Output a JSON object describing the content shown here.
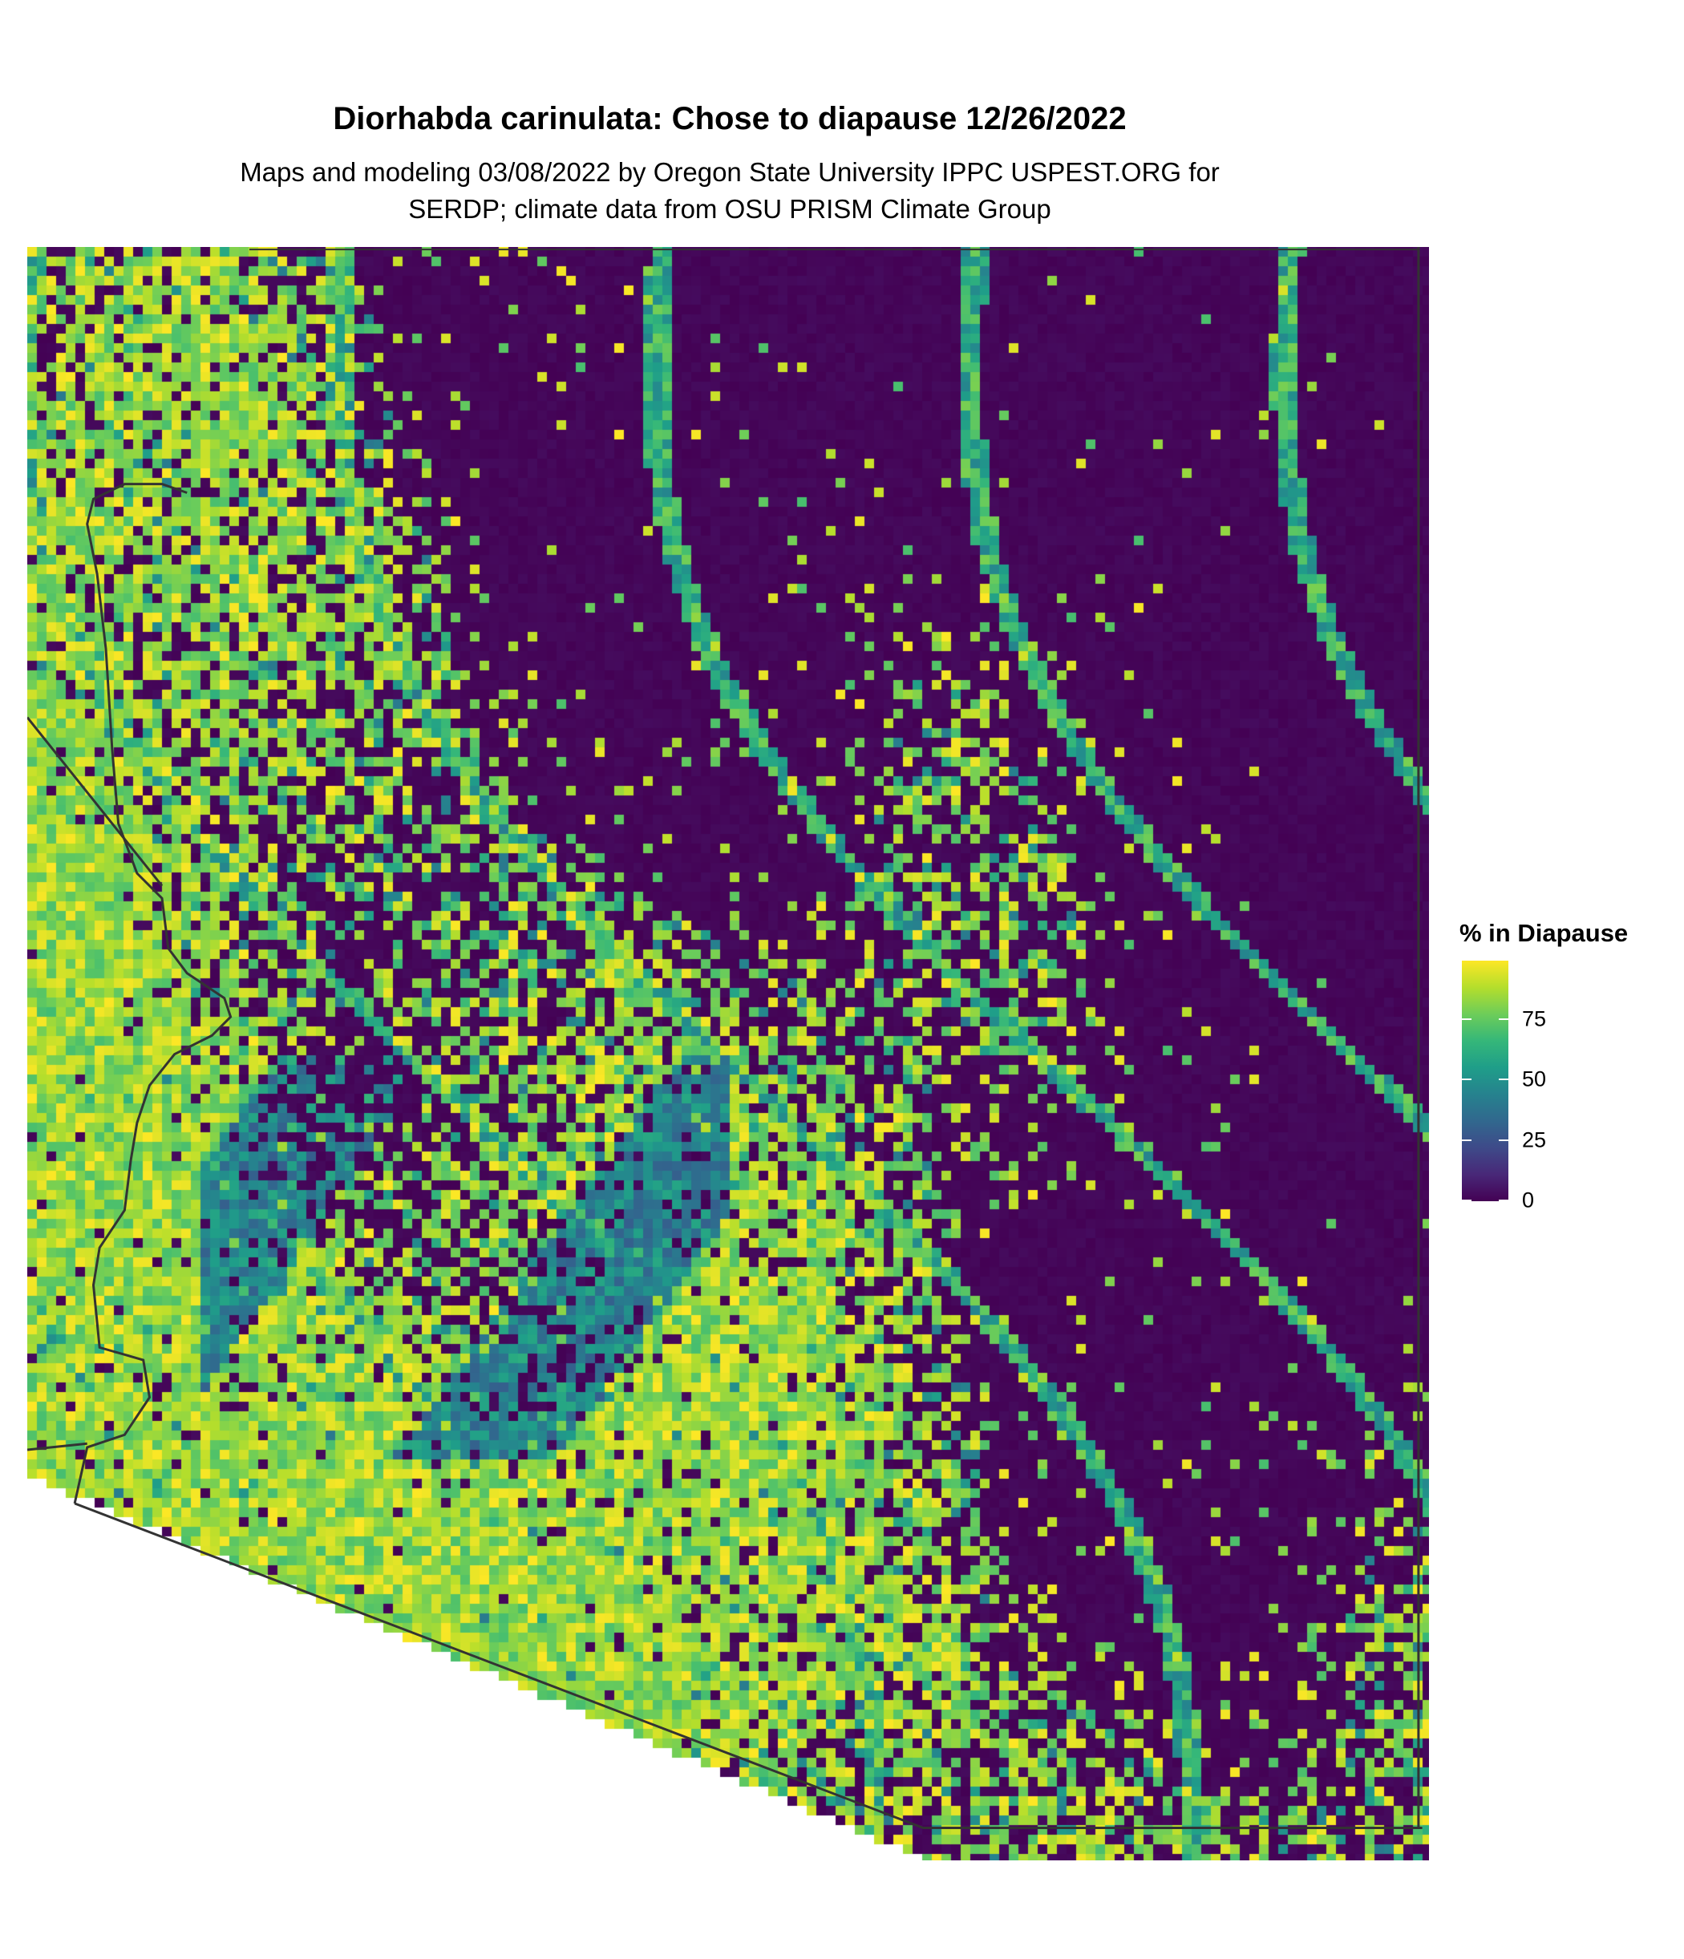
{
  "header": {
    "title": "Diorhabda carinulata: Chose to diapause 12/26/2022",
    "subtitle_line1": "Maps and modeling 03/08/2022 by Oregon State University IPPC USPEST.ORG for",
    "subtitle_line2": "SERDP; climate data from OSU PRISM Climate Group"
  },
  "chart_data": {
    "type": "heatmap",
    "title": "Diorhabda carinulata: Chose to diapause 12/26/2022",
    "legend": {
      "title": "% in Diapause",
      "ticks": [
        "0",
        "25",
        "50",
        "75"
      ],
      "range": [
        0,
        100
      ],
      "colormap": "viridis",
      "colors": [
        "#440154",
        "#3b528b",
        "#21908c",
        "#5dc863",
        "#fde725"
      ],
      "placement": "right"
    },
    "pattern": "high values (yellow) in the south-west lowlands, low values (purple) in the north-east, mixed speckle across the middle",
    "grid": false,
    "border_color": "#333333"
  }
}
